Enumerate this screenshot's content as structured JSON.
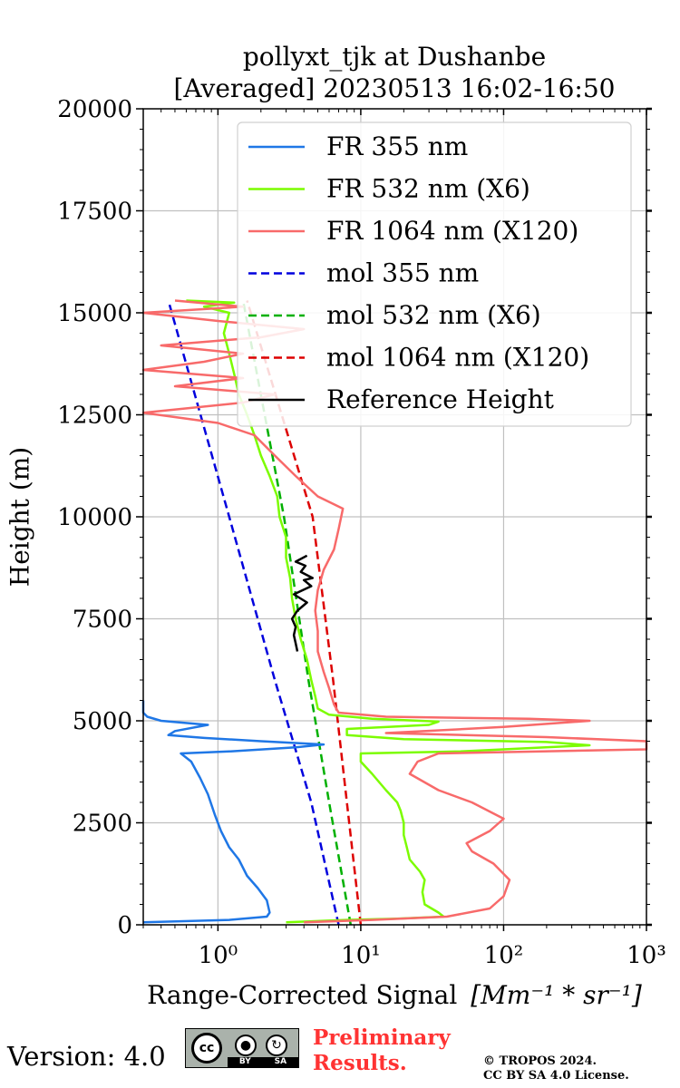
{
  "chart_data": {
    "type": "line",
    "title": [
      "pollyxt_tjk at Dushanbe",
      "[Averaged] 20230513 16:02-16:50"
    ],
    "xlabel": "Range-Corrected Signal",
    "xlabel_unit_tex": "[Mm⁻¹ * sr⁻¹]",
    "ylabel": "Height (m)",
    "xscale": "log",
    "xlim": [
      0.3,
      1000
    ],
    "ylim": [
      0,
      20000
    ],
    "xticks": [
      {
        "value": 1,
        "label": "10⁰"
      },
      {
        "value": 10,
        "label": "10¹"
      },
      {
        "value": 100,
        "label": "10²"
      },
      {
        "value": 1000,
        "label": "10³"
      }
    ],
    "yticks": [
      0,
      2500,
      5000,
      7500,
      10000,
      12500,
      15000,
      17500,
      20000
    ],
    "grid": true,
    "legend_position": "top-right",
    "series": [
      {
        "name": "FR 355 nm",
        "color": "#1f77e6",
        "style": "solid",
        "points": [
          [
            0.3,
            60
          ],
          [
            1.2,
            120
          ],
          [
            2.2,
            200
          ],
          [
            2.3,
            300
          ],
          [
            2.2,
            600
          ],
          [
            1.9,
            900
          ],
          [
            1.6,
            1200
          ],
          [
            1.4,
            1600
          ],
          [
            1.2,
            1900
          ],
          [
            1.05,
            2300
          ],
          [
            0.95,
            2700
          ],
          [
            0.85,
            3200
          ],
          [
            0.75,
            3600
          ],
          [
            0.65,
            4000
          ],
          [
            0.55,
            4200
          ],
          [
            1.2,
            4250
          ],
          [
            3.5,
            4350
          ],
          [
            5.5,
            4420
          ],
          [
            2.0,
            4500
          ],
          [
            0.8,
            4580
          ],
          [
            0.45,
            4650
          ],
          [
            0.5,
            4750
          ],
          [
            0.85,
            4900
          ],
          [
            0.4,
            5000
          ],
          [
            0.32,
            5100
          ],
          [
            0.3,
            5200
          ],
          [
            0.3,
            5500
          ]
        ]
      },
      {
        "name": "FR 532 nm (X6)",
        "color": "#7cfc00",
        "style": "solid",
        "points": [
          [
            3,
            60
          ],
          [
            8,
            120
          ],
          [
            18,
            150
          ],
          [
            38,
            200
          ],
          [
            35,
            300
          ],
          [
            28,
            500
          ],
          [
            27,
            800
          ],
          [
            28,
            1100
          ],
          [
            26,
            1300
          ],
          [
            22,
            1600
          ],
          [
            21,
            1900
          ],
          [
            20,
            2200
          ],
          [
            20,
            2500
          ],
          [
            19,
            2800
          ],
          [
            18,
            3000
          ],
          [
            15,
            3300
          ],
          [
            12,
            3700
          ],
          [
            10,
            4000
          ],
          [
            10,
            4200
          ],
          [
            50,
            4250
          ],
          [
            400,
            4400
          ],
          [
            200,
            4480
          ],
          [
            20,
            4550
          ],
          [
            8,
            4650
          ],
          [
            8,
            4800
          ],
          [
            30,
            4900
          ],
          [
            35,
            4980
          ],
          [
            12,
            5050
          ],
          [
            6,
            5150
          ],
          [
            5,
            5300
          ],
          [
            4.8,
            5600
          ],
          [
            4.5,
            6000
          ],
          [
            4.2,
            6500
          ],
          [
            3.8,
            7000
          ],
          [
            3.5,
            7500
          ],
          [
            3.3,
            8000
          ],
          [
            3.2,
            8500
          ],
          [
            3.0,
            9000
          ],
          [
            3.0,
            9500
          ],
          [
            2.7,
            10000
          ],
          [
            2.6,
            10500
          ],
          [
            2.3,
            11000
          ],
          [
            2.0,
            11500
          ],
          [
            1.8,
            12000
          ],
          [
            1.6,
            12500
          ],
          [
            1.4,
            13000
          ],
          [
            1.3,
            13500
          ],
          [
            1.2,
            14000
          ],
          [
            1.1,
            14500
          ],
          [
            1.2,
            15000
          ],
          [
            0.8,
            15150
          ],
          [
            1.3,
            15250
          ],
          [
            0.6,
            15300
          ]
        ]
      },
      {
        "name": "FR 1064 nm (X120)",
        "color": "#f86a6a",
        "style": "solid",
        "points": [
          [
            4,
            60
          ],
          [
            12,
            120
          ],
          [
            40,
            200
          ],
          [
            80,
            400
          ],
          [
            100,
            700
          ],
          [
            110,
            1100
          ],
          [
            85,
            1500
          ],
          [
            60,
            1800
          ],
          [
            55,
            2000
          ],
          [
            80,
            2300
          ],
          [
            100,
            2600
          ],
          [
            60,
            3000
          ],
          [
            35,
            3300
          ],
          [
            22,
            3700
          ],
          [
            25,
            4000
          ],
          [
            35,
            4200
          ],
          [
            1000,
            4300
          ],
          [
            1000,
            4500
          ],
          [
            200,
            4600
          ],
          [
            15,
            4700
          ],
          [
            100,
            4850
          ],
          [
            400,
            5000
          ],
          [
            150,
            5050
          ],
          [
            15,
            5100
          ],
          [
            7,
            5200
          ],
          [
            6.5,
            5400
          ],
          [
            6,
            5800
          ],
          [
            5.5,
            6200
          ],
          [
            5,
            6700
          ],
          [
            5,
            7200
          ],
          [
            4.8,
            7700
          ],
          [
            5,
            8200
          ],
          [
            5.5,
            8700
          ],
          [
            6.5,
            9200
          ],
          [
            7,
            9700
          ],
          [
            7.5,
            10200
          ],
          [
            5,
            10500
          ],
          [
            3.5,
            11000
          ],
          [
            2.5,
            11500
          ],
          [
            1.8,
            12000
          ],
          [
            1.0,
            12300
          ],
          [
            0.3,
            12550
          ],
          [
            1.5,
            12800
          ],
          [
            2.5,
            13000
          ],
          [
            0.5,
            13200
          ],
          [
            1.5,
            13400
          ],
          [
            0.3,
            13600
          ],
          [
            0.8,
            13800
          ],
          [
            1.5,
            14000
          ],
          [
            0.4,
            14200
          ],
          [
            2.0,
            14400
          ],
          [
            4.0,
            14600
          ],
          [
            1.0,
            14800
          ],
          [
            0.3,
            15000
          ],
          [
            1.5,
            15150
          ],
          [
            0.5,
            15300
          ]
        ]
      },
      {
        "name": "mol 355 nm",
        "color": "#0000dd",
        "style": "dashed",
        "points": [
          [
            7,
            0
          ],
          [
            4.5,
            3000
          ],
          [
            2.5,
            6000
          ],
          [
            1.2,
            10000
          ],
          [
            0.45,
            15300
          ]
        ]
      },
      {
        "name": "mol 532 nm (X6)",
        "color": "#00b000",
        "style": "dashed",
        "points": [
          [
            8.5,
            0
          ],
          [
            6.0,
            3000
          ],
          [
            4.3,
            6000
          ],
          [
            2.9,
            10000
          ],
          [
            1.5,
            15300
          ]
        ]
      },
      {
        "name": "mol 1064 nm (X120)",
        "color": "#dd0000",
        "style": "dashed",
        "points": [
          [
            10,
            0
          ],
          [
            8.0,
            3000
          ],
          [
            6.4,
            6000
          ],
          [
            4.6,
            10000
          ],
          [
            1.6,
            15300
          ]
        ]
      },
      {
        "name": "Reference Height",
        "color": "#000000",
        "style": "solid",
        "points": [
          [
            3.6,
            6700
          ],
          [
            3.5,
            6900
          ],
          [
            3.4,
            7100
          ],
          [
            3.5,
            7300
          ],
          [
            3.3,
            7500
          ],
          [
            3.6,
            7700
          ],
          [
            4.2,
            7900
          ],
          [
            3.4,
            8100
          ],
          [
            4.5,
            8300
          ],
          [
            4.0,
            8450
          ],
          [
            4.6,
            8500
          ],
          [
            3.8,
            8650
          ],
          [
            4.1,
            8800
          ],
          [
            3.5,
            8900
          ],
          [
            4.2,
            9050
          ]
        ]
      }
    ]
  },
  "footer": {
    "version": "Version: 4.0",
    "license_badge": {
      "cc": "cc",
      "by": "BY",
      "sa": "SA",
      "by_icon": "person-icon",
      "sa_icon": "share-alike-icon"
    },
    "preliminary": [
      "Preliminary",
      "Results."
    ],
    "copyright": [
      "© TROPOS 2024.",
      "CC BY SA 4.0 License."
    ]
  }
}
